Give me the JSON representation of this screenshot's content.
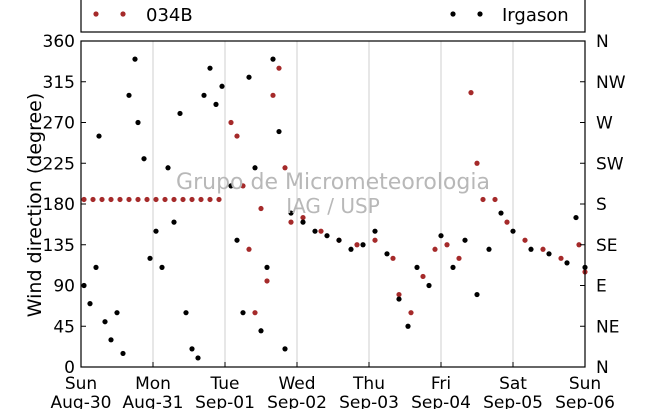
{
  "chart_data": {
    "type": "scatter",
    "ylabel": "Wind direction (degree)",
    "xlabel": "",
    "ylim": [
      0,
      360
    ],
    "yticks": [
      0,
      45,
      90,
      135,
      180,
      225,
      270,
      315,
      360
    ],
    "yticks_right": [
      "N",
      "NE",
      "E",
      "SE",
      "S",
      "SW",
      "W",
      "NW",
      "N"
    ],
    "x_days": [
      {
        "day": "Sun",
        "date": "Aug-30"
      },
      {
        "day": "Mon",
        "date": "Aug-31"
      },
      {
        "day": "Tue",
        "date": "Sep-01"
      },
      {
        "day": "Wed",
        "date": "Sep-02"
      },
      {
        "day": "Thu",
        "date": "Sep-03"
      },
      {
        "day": "Fri",
        "date": "Sep-04"
      },
      {
        "day": "Sat",
        "date": "Sep-05"
      },
      {
        "day": "Sun",
        "date": "Sep-06"
      }
    ],
    "xlim": [
      "Aug-30 00:00",
      "Sep-06 00:00"
    ],
    "grid": "vertical",
    "legend_position": "top",
    "watermark": [
      "Grupo de Micrometeorologia",
      "IAG / USP"
    ],
    "series": [
      {
        "name": "034B",
        "color": "#a52a2a",
        "points": [
          [
            "Aug-30 01:00",
            185
          ],
          [
            "Aug-30 04:00",
            185
          ],
          [
            "Aug-30 07:00",
            185
          ],
          [
            "Aug-30 10:00",
            185
          ],
          [
            "Aug-30 13:00",
            185
          ],
          [
            "Aug-30 16:00",
            185
          ],
          [
            "Aug-30 19:00",
            185
          ],
          [
            "Aug-30 22:00",
            185
          ],
          [
            "Aug-31 01:00",
            185
          ],
          [
            "Aug-31 04:00",
            185
          ],
          [
            "Aug-31 07:00",
            185
          ],
          [
            "Aug-31 10:00",
            185
          ],
          [
            "Aug-31 13:00",
            185
          ],
          [
            "Aug-31 16:00",
            185
          ],
          [
            "Aug-31 19:00",
            185
          ],
          [
            "Aug-31 22:00",
            185
          ],
          [
            "Sep-01 02:00",
            270
          ],
          [
            "Sep-01 04:00",
            255
          ],
          [
            "Sep-01 06:00",
            200
          ],
          [
            "Sep-01 08:00",
            130
          ],
          [
            "Sep-01 10:00",
            60
          ],
          [
            "Sep-01 12:00",
            175
          ],
          [
            "Sep-01 14:00",
            95
          ],
          [
            "Sep-01 16:00",
            300
          ],
          [
            "Sep-01 18:00",
            330
          ],
          [
            "Sep-01 20:00",
            220
          ],
          [
            "Sep-01 22:00",
            160
          ],
          [
            "Sep-02 02:00",
            165
          ],
          [
            "Sep-02 08:00",
            150
          ],
          [
            "Sep-02 14:00",
            140
          ],
          [
            "Sep-02 20:00",
            135
          ],
          [
            "Sep-03 02:00",
            140
          ],
          [
            "Sep-03 08:00",
            120
          ],
          [
            "Sep-03 10:00",
            80
          ],
          [
            "Sep-03 14:00",
            60
          ],
          [
            "Sep-03 18:00",
            100
          ],
          [
            "Sep-03 22:00",
            130
          ],
          [
            "Sep-04 02:00",
            135
          ],
          [
            "Sep-04 06:00",
            120
          ],
          [
            "Sep-04 10:00",
            303
          ],
          [
            "Sep-04 12:00",
            225
          ],
          [
            "Sep-04 14:00",
            185
          ],
          [
            "Sep-04 18:00",
            185
          ],
          [
            "Sep-04 22:00",
            160
          ],
          [
            "Sep-05 04:00",
            140
          ],
          [
            "Sep-05 10:00",
            130
          ],
          [
            "Sep-05 16:00",
            120
          ],
          [
            "Sep-05 22:00",
            135
          ],
          [
            "Sep-06 00:00",
            105
          ]
        ]
      },
      {
        "name": "Irgason",
        "color": "#000000",
        "points": [
          [
            "Aug-30 01:00",
            90
          ],
          [
            "Aug-30 03:00",
            70
          ],
          [
            "Aug-30 05:00",
            110
          ],
          [
            "Aug-30 06:00",
            255
          ],
          [
            "Aug-30 08:00",
            50
          ],
          [
            "Aug-30 10:00",
            30
          ],
          [
            "Aug-30 12:00",
            60
          ],
          [
            "Aug-30 14:00",
            15
          ],
          [
            "Aug-30 16:00",
            300
          ],
          [
            "Aug-30 18:00",
            340
          ],
          [
            "Aug-30 19:00",
            270
          ],
          [
            "Aug-30 21:00",
            230
          ],
          [
            "Aug-30 23:00",
            120
          ],
          [
            "Aug-31 01:00",
            150
          ],
          [
            "Aug-31 03:00",
            110
          ],
          [
            "Aug-31 05:00",
            220
          ],
          [
            "Aug-31 07:00",
            160
          ],
          [
            "Aug-31 09:00",
            280
          ],
          [
            "Aug-31 11:00",
            60
          ],
          [
            "Aug-31 13:00",
            20
          ],
          [
            "Aug-31 15:00",
            10
          ],
          [
            "Aug-31 17:00",
            300
          ],
          [
            "Aug-31 19:00",
            330
          ],
          [
            "Aug-31 21:00",
            290
          ],
          [
            "Aug-31 23:00",
            310
          ],
          [
            "Sep-01 02:00",
            200
          ],
          [
            "Sep-01 04:00",
            140
          ],
          [
            "Sep-01 06:00",
            60
          ],
          [
            "Sep-01 08:00",
            320
          ],
          [
            "Sep-01 10:00",
            220
          ],
          [
            "Sep-01 12:00",
            40
          ],
          [
            "Sep-01 14:00",
            110
          ],
          [
            "Sep-01 16:00",
            340
          ],
          [
            "Sep-01 18:00",
            260
          ],
          [
            "Sep-01 20:00",
            20
          ],
          [
            "Sep-01 22:00",
            170
          ],
          [
            "Sep-02 02:00",
            160
          ],
          [
            "Sep-02 06:00",
            150
          ],
          [
            "Sep-02 10:00",
            145
          ],
          [
            "Sep-02 14:00",
            140
          ],
          [
            "Sep-02 18:00",
            130
          ],
          [
            "Sep-02 22:00",
            135
          ],
          [
            "Sep-03 02:00",
            150
          ],
          [
            "Sep-03 06:00",
            125
          ],
          [
            "Sep-03 10:00",
            75
          ],
          [
            "Sep-03 13:00",
            45
          ],
          [
            "Sep-03 16:00",
            110
          ],
          [
            "Sep-03 20:00",
            90
          ],
          [
            "Sep-04 00:00",
            145
          ],
          [
            "Sep-04 04:00",
            110
          ],
          [
            "Sep-04 08:00",
            140
          ],
          [
            "Sep-04 12:00",
            80
          ],
          [
            "Sep-04 16:00",
            130
          ],
          [
            "Sep-04 20:00",
            170
          ],
          [
            "Sep-05 00:00",
            150
          ],
          [
            "Sep-05 06:00",
            130
          ],
          [
            "Sep-05 12:00",
            125
          ],
          [
            "Sep-05 18:00",
            115
          ],
          [
            "Sep-05 21:00",
            165
          ],
          [
            "Sep-06 00:00",
            110
          ]
        ]
      }
    ]
  }
}
